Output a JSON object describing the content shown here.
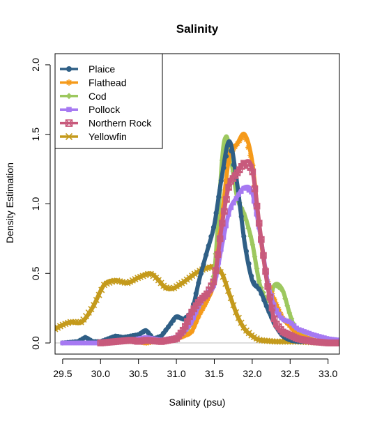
{
  "chart_data": {
    "type": "line",
    "title": "Salinity",
    "xlabel": "Salinity (psu)",
    "ylabel": "Density Estimation",
    "xlim": [
      29.4,
      33.15
    ],
    "ylim": [
      -0.08,
      2.08
    ],
    "xticks": [
      29.5,
      30.0,
      30.5,
      31.0,
      31.5,
      32.0,
      32.5,
      33.0
    ],
    "xtick_labels": [
      "29.5",
      "30.0",
      "30.5",
      "31.0",
      "31.5",
      "32.0",
      "32.5",
      "33.0"
    ],
    "yticks": [
      0.0,
      0.5,
      1.0,
      1.5,
      2.0
    ],
    "ytick_labels": [
      "0.0",
      "0.5",
      "1.0",
      "1.5",
      "2.0"
    ],
    "legend_position": "top-left",
    "series": [
      {
        "name": "Plaice",
        "color": "#2f5f86",
        "marker": "circle",
        "x": [
          29.5,
          29.7,
          29.8,
          29.9,
          30.0,
          30.1,
          30.2,
          30.3,
          30.4,
          30.5,
          30.6,
          30.7,
          30.8,
          30.9,
          31.0,
          31.1,
          31.2,
          31.3,
          31.4,
          31.5,
          31.6,
          31.7,
          31.8,
          31.9,
          32.0,
          32.1,
          32.2,
          32.3,
          32.4,
          32.5,
          32.6,
          32.8,
          33.0,
          33.15
        ],
        "y": [
          0.0,
          0.01,
          0.04,
          0.01,
          0.01,
          0.03,
          0.05,
          0.04,
          0.05,
          0.06,
          0.09,
          0.03,
          0.05,
          0.12,
          0.19,
          0.17,
          0.22,
          0.45,
          0.65,
          0.85,
          1.2,
          1.45,
          1.15,
          0.72,
          0.45,
          0.38,
          0.25,
          0.13,
          0.05,
          0.02,
          0.01,
          0.01,
          0.0,
          0.0
        ]
      },
      {
        "name": "Flathead",
        "color": "#f59a1a",
        "marker": "asterisk",
        "x": [
          30.0,
          30.2,
          30.4,
          30.5,
          30.6,
          30.8,
          31.0,
          31.1,
          31.2,
          31.3,
          31.4,
          31.5,
          31.6,
          31.7,
          31.8,
          31.9,
          32.0,
          32.1,
          32.2,
          32.3,
          32.4,
          32.5,
          32.6,
          32.8,
          33.0,
          33.15
        ],
        "y": [
          0.0,
          0.01,
          0.02,
          0.01,
          0.0,
          0.02,
          0.03,
          0.05,
          0.08,
          0.2,
          0.3,
          0.45,
          0.9,
          1.35,
          1.43,
          1.5,
          1.3,
          0.8,
          0.45,
          0.3,
          0.18,
          0.12,
          0.06,
          0.02,
          0.0,
          0.0
        ]
      },
      {
        "name": "Cod",
        "color": "#9dc85f",
        "marker": "diamond",
        "x": [
          30.0,
          30.2,
          30.4,
          30.6,
          30.8,
          31.0,
          31.1,
          31.2,
          31.3,
          31.4,
          31.5,
          31.6,
          31.65,
          31.7,
          31.8,
          31.9,
          32.0,
          32.1,
          32.2,
          32.3,
          32.4,
          32.5,
          32.6,
          32.8,
          33.0,
          33.15
        ],
        "y": [
          0.0,
          0.01,
          0.01,
          0.02,
          0.01,
          0.03,
          0.07,
          0.14,
          0.22,
          0.3,
          0.5,
          1.3,
          1.48,
          1.4,
          1.05,
          0.92,
          0.72,
          0.42,
          0.3,
          0.42,
          0.38,
          0.2,
          0.07,
          0.02,
          0.0,
          0.0
        ]
      },
      {
        "name": "Pollock",
        "color": "#a679f2",
        "marker": "square",
        "x": [
          29.5,
          29.8,
          30.0,
          30.2,
          30.4,
          30.6,
          30.8,
          31.0,
          31.1,
          31.2,
          31.3,
          31.4,
          31.5,
          31.6,
          31.7,
          31.8,
          31.9,
          32.0,
          32.1,
          32.2,
          32.3,
          32.4,
          32.5,
          32.6,
          32.8,
          33.0,
          33.15
        ],
        "y": [
          0.0,
          0.0,
          0.0,
          0.01,
          0.02,
          0.04,
          0.02,
          0.04,
          0.08,
          0.15,
          0.27,
          0.35,
          0.42,
          0.7,
          0.95,
          1.05,
          1.12,
          1.08,
          0.8,
          0.45,
          0.25,
          0.17,
          0.15,
          0.1,
          0.06,
          0.03,
          0.02
        ]
      },
      {
        "name": "Northern Rock",
        "color": "#c85a7c",
        "marker": "square-x",
        "x": [
          30.0,
          30.2,
          30.4,
          30.5,
          30.6,
          30.8,
          31.0,
          31.1,
          31.2,
          31.3,
          31.4,
          31.5,
          31.6,
          31.7,
          31.8,
          31.9,
          32.0,
          32.1,
          32.2,
          32.3,
          32.4,
          32.6,
          32.8,
          33.0,
          33.15
        ],
        "y": [
          0.0,
          0.01,
          0.02,
          0.01,
          0.02,
          0.01,
          0.03,
          0.1,
          0.22,
          0.3,
          0.35,
          0.45,
          0.85,
          1.15,
          1.22,
          1.3,
          1.25,
          0.82,
          0.42,
          0.15,
          0.08,
          0.03,
          0.01,
          0.0,
          0.0
        ]
      },
      {
        "name": "Yellowfin",
        "color": "#c49a1c",
        "marker": "x",
        "x": [
          29.4,
          29.5,
          29.6,
          29.75,
          29.9,
          30.05,
          30.2,
          30.35,
          30.5,
          30.65,
          30.75,
          30.85,
          30.95,
          31.1,
          31.25,
          31.35,
          31.5,
          31.6,
          31.7,
          31.8,
          31.9,
          32.0,
          32.1,
          32.3,
          32.6,
          33.0,
          33.15
        ],
        "y": [
          0.1,
          0.13,
          0.15,
          0.15,
          0.26,
          0.42,
          0.45,
          0.43,
          0.47,
          0.5,
          0.46,
          0.4,
          0.39,
          0.44,
          0.5,
          0.53,
          0.55,
          0.5,
          0.35,
          0.2,
          0.1,
          0.05,
          0.02,
          0.01,
          0.01,
          0.0,
          0.0
        ]
      }
    ]
  }
}
